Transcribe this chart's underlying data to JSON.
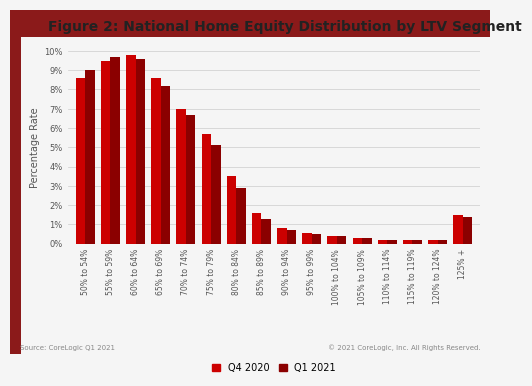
{
  "title": "Figure 2: National Home Equity Distribution by LTV Segment",
  "ylabel": "Percentage Rate",
  "source_text": "Source: CoreLogic Q1 2021",
  "copyright_text": "© 2021 CoreLogic, Inc. All Rights Reserved.",
  "categories": [
    "50% to 54%",
    "55% to 59%",
    "60% to 64%",
    "65% to 69%",
    "70% to 74%",
    "75% to 79%",
    "80% to 84%",
    "85% to 89%",
    "90% to 94%",
    "95% to 99%",
    "100% to 104%",
    "105% to 109%",
    "110% to 114%",
    "115% to 119%",
    "120% to 124%",
    "125% +"
  ],
  "q4_2020": [
    8.6,
    9.5,
    9.8,
    8.6,
    7.0,
    5.7,
    3.5,
    1.6,
    0.8,
    0.55,
    0.4,
    0.3,
    0.2,
    0.2,
    0.2,
    1.5
  ],
  "q1_2021": [
    9.0,
    9.7,
    9.6,
    8.2,
    6.7,
    5.1,
    2.9,
    1.3,
    0.7,
    0.5,
    0.4,
    0.3,
    0.2,
    0.2,
    0.2,
    1.4
  ],
  "q4_color": "#cc0000",
  "q1_color": "#8B0000",
  "ylim": [
    0,
    10
  ],
  "yticks": [
    0,
    1,
    2,
    3,
    4,
    5,
    6,
    7,
    8,
    9,
    10
  ],
  "background_color": "#f5f5f5",
  "bar_width": 0.38,
  "title_fontsize": 10,
  "axis_fontsize": 7,
  "tick_fontsize": 6,
  "legend_fontsize": 7,
  "source_fontsize": 5,
  "left_panel_color": "#8B1a1a"
}
